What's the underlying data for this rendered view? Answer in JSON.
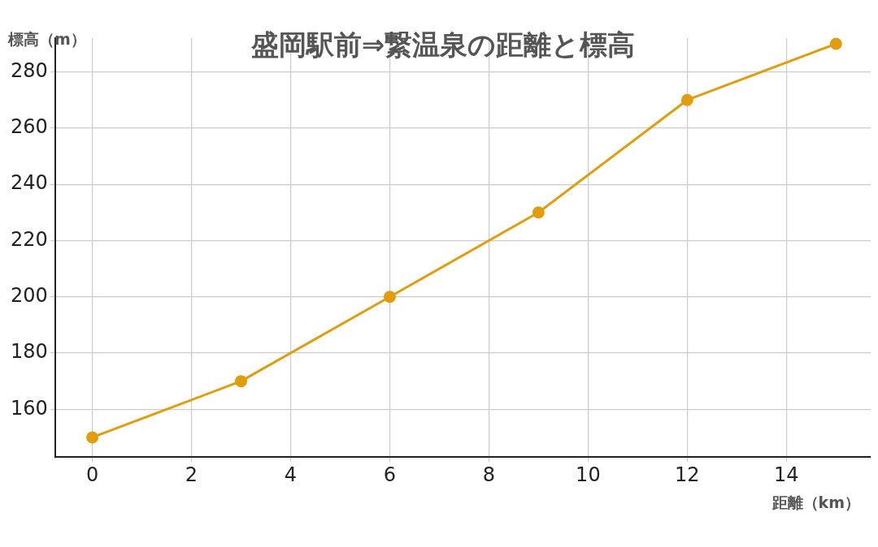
{
  "chart_data": {
    "type": "line",
    "title": "盛岡駅前⇒繋温泉の距離と標高",
    "xlabel": "距離（km）",
    "ylabel": "標高（m）",
    "x": [
      0,
      3,
      6,
      9,
      12,
      15
    ],
    "series": [
      {
        "color": "#e29d0c",
        "values": [
          150,
          170,
          200,
          230,
          270,
          290
        ]
      }
    ],
    "xlim": [
      -0.75,
      15.7
    ],
    "xticks": [
      0,
      2,
      4,
      6,
      8,
      10,
      12,
      14
    ],
    "ylim": [
      143,
      292
    ],
    "yticks": [
      160,
      180,
      200,
      220,
      240,
      260,
      280
    ],
    "grid": true,
    "legend": false,
    "marker": "circle",
    "line_style": "solid"
  }
}
